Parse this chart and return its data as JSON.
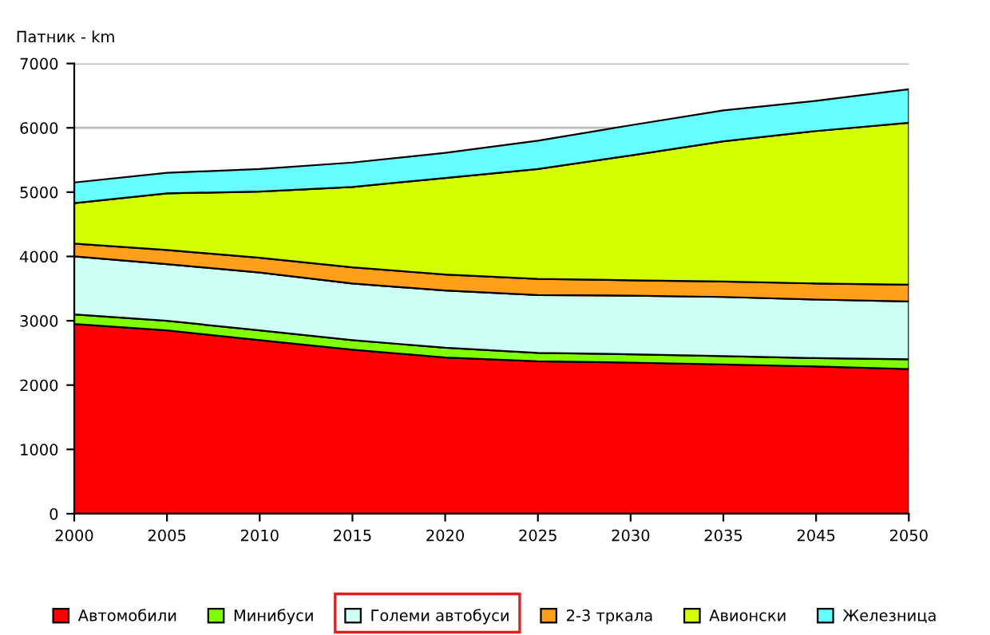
{
  "chart_data": {
    "type": "area",
    "stacked": true,
    "ylabel": "Патник - km",
    "categories": [
      "2000",
      "2005",
      "2010",
      "2015",
      "2020",
      "2025",
      "2030",
      "2035",
      "2045",
      "2050"
    ],
    "series": [
      {
        "name": "Автомобили",
        "color": "#ff0000",
        "values": [
          2950,
          2850,
          2700,
          2550,
          2430,
          2370,
          2350,
          2320,
          2290,
          2250
        ]
      },
      {
        "name": "Минибуси",
        "color": "#80ff00",
        "values": [
          150,
          150,
          150,
          150,
          150,
          130,
          130,
          130,
          130,
          150
        ]
      },
      {
        "name": "Големи автобуси",
        "color": "#ccfff5",
        "values": [
          900,
          880,
          900,
          880,
          890,
          900,
          910,
          920,
          910,
          900
        ]
      },
      {
        "name": "2-3 тркала",
        "color": "#ff9f1a",
        "values": [
          200,
          220,
          230,
          250,
          250,
          250,
          240,
          240,
          250,
          260
        ]
      },
      {
        "name": "Авионски",
        "color": "#d4ff00",
        "values": [
          630,
          880,
          1030,
          1250,
          1500,
          1710,
          1940,
          2180,
          2370,
          2520
        ]
      },
      {
        "name": "Железница",
        "color": "#66ffff",
        "values": [
          320,
          320,
          350,
          380,
          390,
          440,
          470,
          480,
          470,
          520
        ]
      }
    ],
    "ylim": [
      0,
      7000
    ],
    "yticks": [
      0,
      1000,
      2000,
      3000,
      4000,
      5000,
      6000,
      7000
    ],
    "grid": "y",
    "legend": "bottom"
  }
}
